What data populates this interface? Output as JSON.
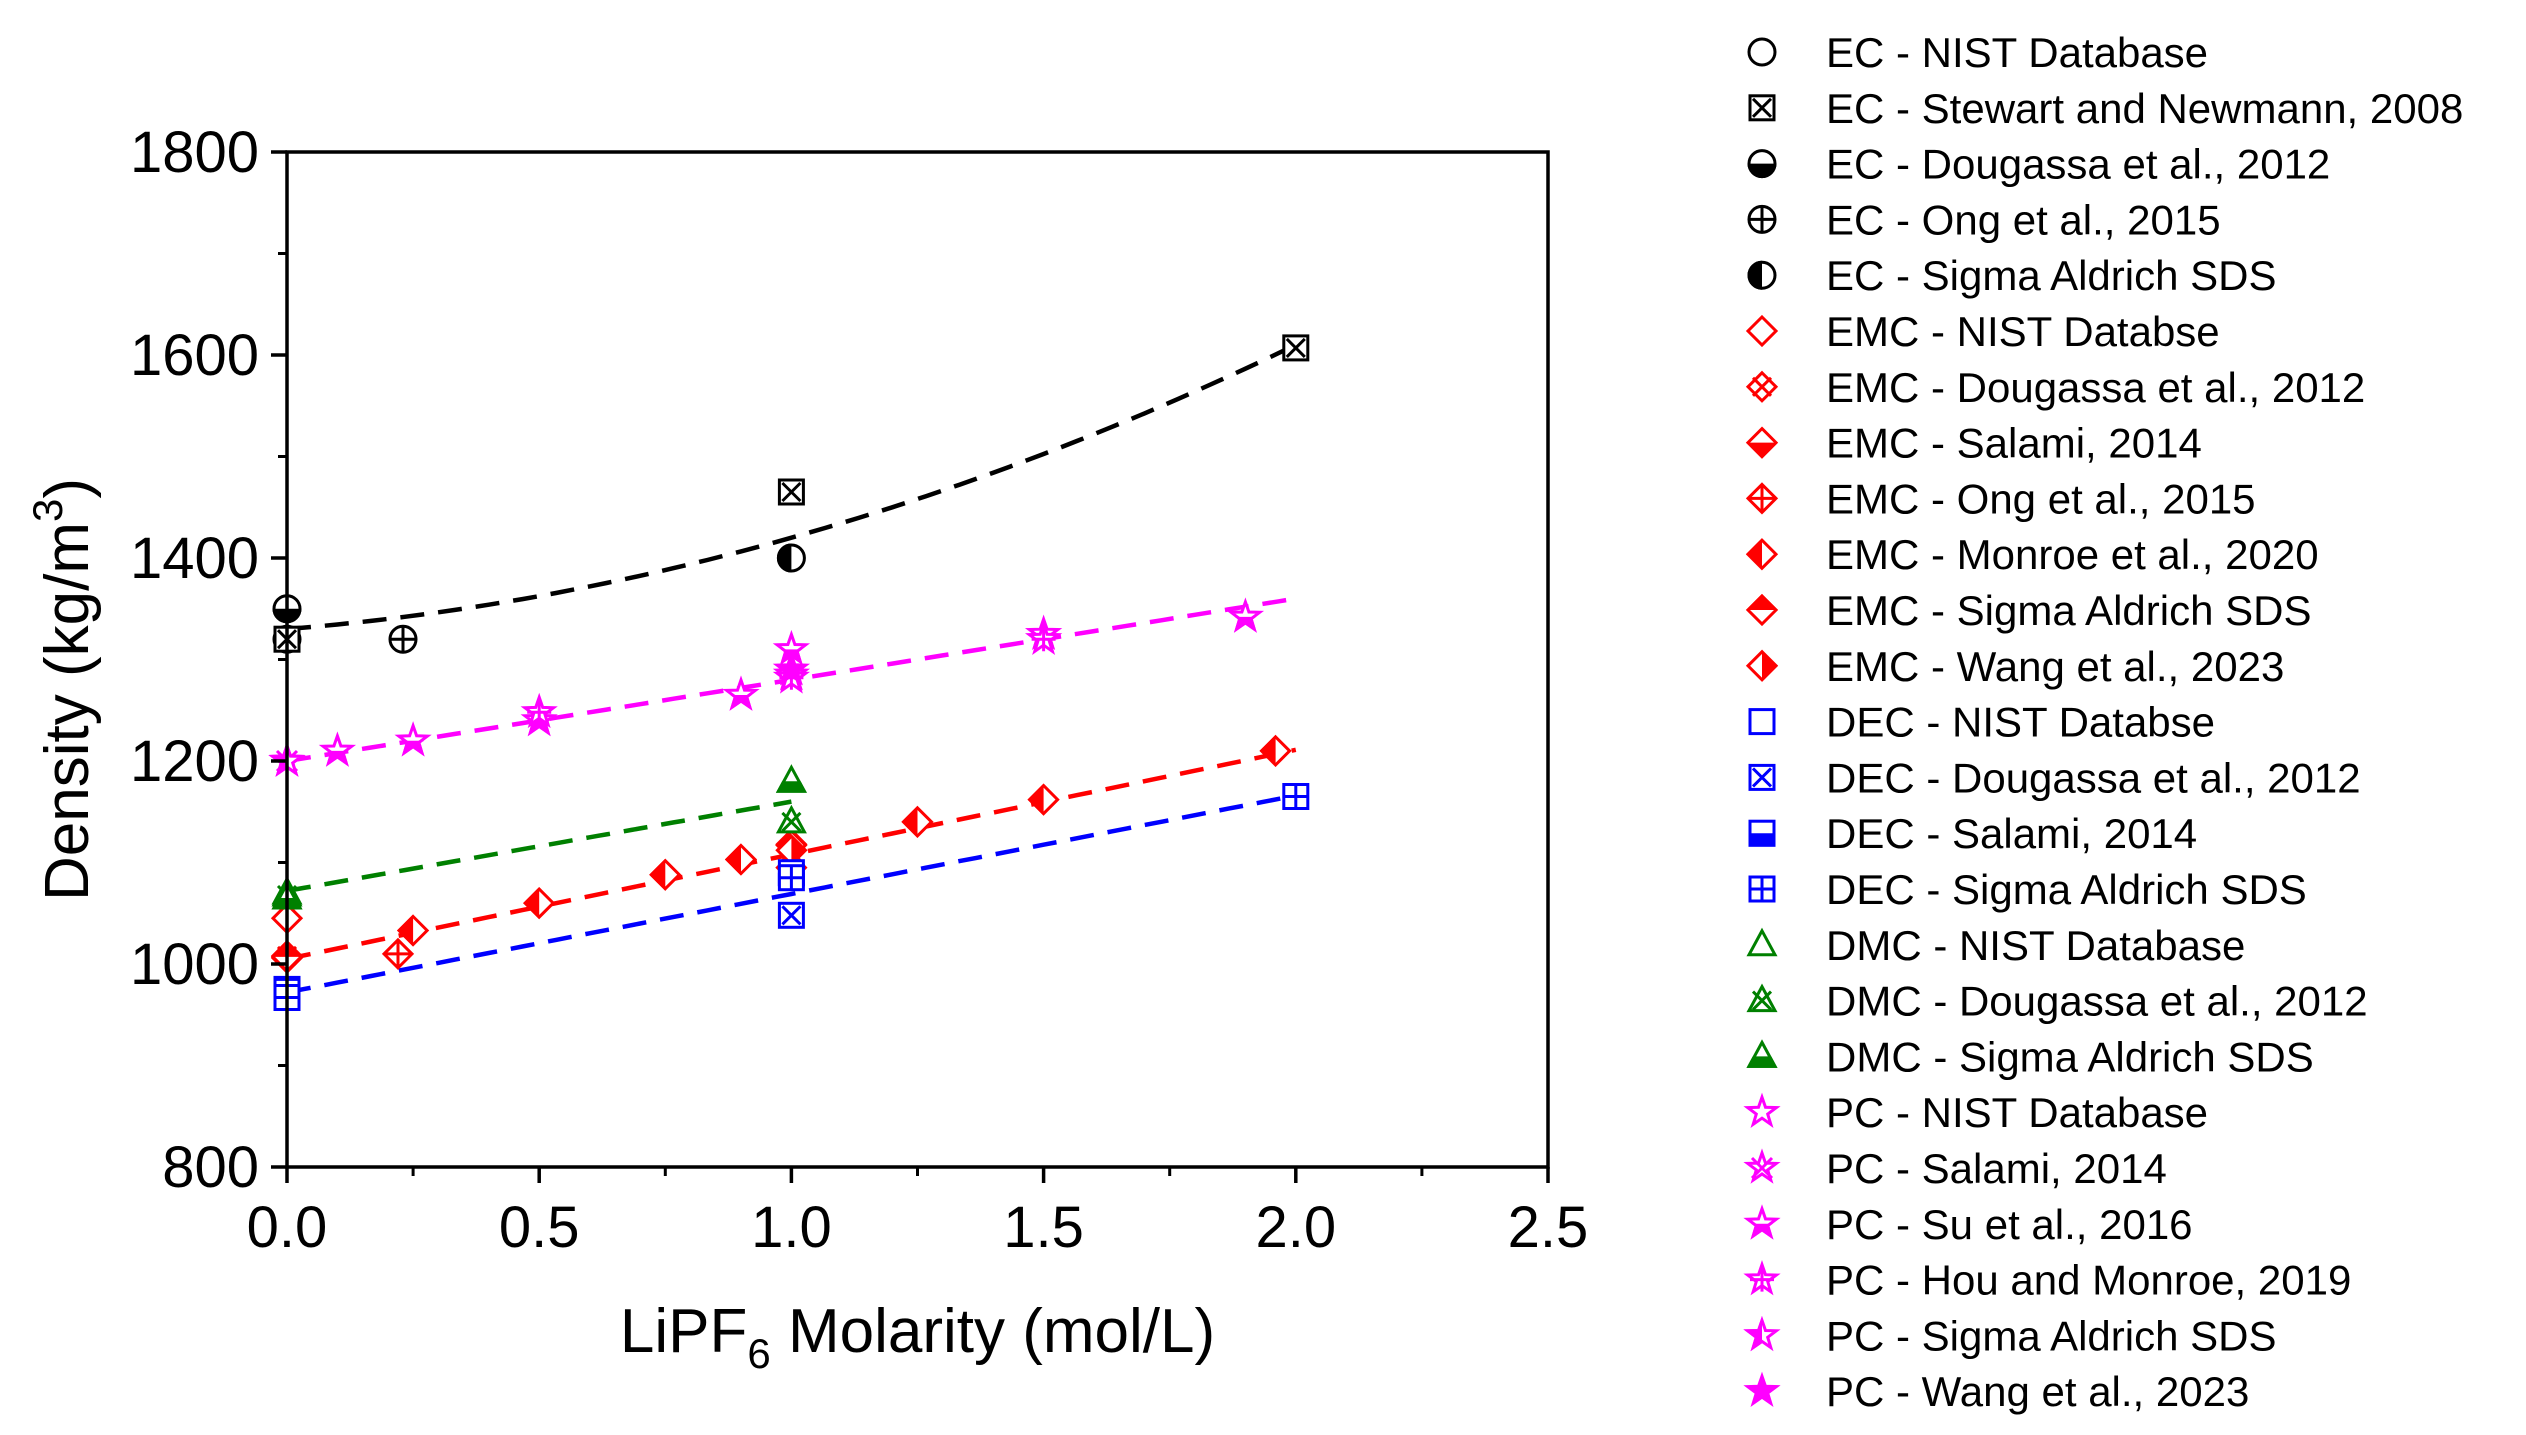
{
  "chart_data": {
    "type": "scatter",
    "title": "",
    "xlabel": {
      "pre": "LiPF",
      "sub": "6",
      "post": " Molarity (mol/L)"
    },
    "ylabel": {
      "pre": "Density (kg/m",
      "sup": "3",
      "post": ")"
    },
    "xlim": [
      0,
      2.5
    ],
    "ylim": [
      800,
      1800
    ],
    "xticks": [
      "0.0",
      "0.5",
      "1.0",
      "1.5",
      "2.0",
      "2.5"
    ],
    "xtick_values": [
      0,
      0.5,
      1.0,
      1.5,
      2.0,
      2.5
    ],
    "yticks": [
      "800",
      "1000",
      "1200",
      "1400",
      "1600",
      "1800"
    ],
    "ytick_values": [
      800,
      1000,
      1200,
      1400,
      1600,
      1800
    ],
    "grid": false,
    "legend_position": "right, outside plot",
    "colors": {
      "EC": "#000000",
      "EMC": "#ff0000",
      "DEC": "#0000ff",
      "DMC": "#008000",
      "PC": "#ff00ff"
    },
    "fits": [
      {
        "name": "EC fit",
        "color": "#000000",
        "coef": [
          1330,
          40,
          50
        ],
        "x_range": [
          0,
          2.0
        ]
      },
      {
        "name": "PC fit",
        "color": "#ff00ff",
        "coef": [
          1200,
          80
        ],
        "x_range": [
          0,
          2.0
        ]
      },
      {
        "name": "DMC fit",
        "color": "#008000",
        "coef": [
          1072,
          88
        ],
        "x_range": [
          0,
          1.0
        ]
      },
      {
        "name": "EMC fit",
        "color": "#ff0000",
        "coef": [
          1005,
          103
        ],
        "x_range": [
          0,
          2.0
        ]
      },
      {
        "name": "DEC fit",
        "color": "#0000ff",
        "coef": [
          972,
          97
        ],
        "x_range": [
          0,
          2.0
        ]
      }
    ],
    "series": [
      {
        "name": "EC - NIST Database",
        "color": "#000000",
        "marker": "circle-open",
        "points": [
          [
            0,
            1320
          ]
        ]
      },
      {
        "name": "EC - Stewart and Newmann, 2008",
        "color": "#000000",
        "marker": "square-x",
        "points": [
          [
            0,
            1320
          ],
          [
            1.0,
            1465
          ],
          [
            2.0,
            1607
          ]
        ]
      },
      {
        "name": "EC - Dougassa et al., 2012",
        "color": "#000000",
        "marker": "circle-bottom-half",
        "points": [
          [
            0,
            1350
          ]
        ]
      },
      {
        "name": "EC - Ong et al., 2015",
        "color": "#000000",
        "marker": "circle-plus",
        "points": [
          [
            0.23,
            1320
          ]
        ]
      },
      {
        "name": "EC - Sigma Aldrich SDS",
        "color": "#000000",
        "marker": "circle-left-half",
        "points": [
          [
            1.0,
            1400
          ]
        ]
      },
      {
        "name": "EMC - NIST Databse",
        "color": "#ff0000",
        "marker": "diamond-open",
        "points": [
          [
            0,
            1045
          ]
        ]
      },
      {
        "name": "EMC - Dougassa et al., 2012",
        "color": "#ff0000",
        "marker": "diamond-x",
        "points": [
          [
            0,
            1008
          ],
          [
            1.0,
            1095
          ]
        ]
      },
      {
        "name": "EMC - Salami, 2014",
        "color": "#ff0000",
        "marker": "diamond-bottom-half",
        "points": [
          [
            0,
            1006
          ],
          [
            1.0,
            1118
          ]
        ]
      },
      {
        "name": "EMC - Ong et al., 2015",
        "color": "#ff0000",
        "marker": "diamond-plus",
        "points": [
          [
            0.22,
            1010
          ]
        ]
      },
      {
        "name": "EMC - Monroe et al., 2020",
        "color": "#ff0000",
        "marker": "diamond-left-half",
        "points": [
          [
            0.25,
            1033
          ],
          [
            0.5,
            1060
          ],
          [
            0.75,
            1088
          ],
          [
            0.9,
            1103
          ],
          [
            1.0,
            1117
          ],
          [
            1.25,
            1140
          ],
          [
            1.5,
            1162
          ],
          [
            1.96,
            1210
          ]
        ]
      },
      {
        "name": "EMC - Sigma Aldrich SDS",
        "color": "#ff0000",
        "marker": "diamond-top-half",
        "points": [
          [
            0,
            1007
          ]
        ]
      },
      {
        "name": "EMC - Wang et al., 2023",
        "color": "#ff0000",
        "marker": "diamond-right-half",
        "points": [
          [
            1.0,
            1112
          ]
        ]
      },
      {
        "name": "DEC - NIST Databse",
        "color": "#0000ff",
        "marker": "square-open",
        "points": [
          [
            0,
            975
          ]
        ]
      },
      {
        "name": "DEC - Dougassa et al., 2012",
        "color": "#0000ff",
        "marker": "square-x",
        "points": [
          [
            0,
            970
          ],
          [
            1.0,
            1048
          ]
        ]
      },
      {
        "name": "DEC - Salami, 2014",
        "color": "#0000ff",
        "marker": "square-bottom-half",
        "points": [
          [
            0,
            973
          ],
          [
            1.0,
            1090
          ]
        ]
      },
      {
        "name": "DEC - Sigma Aldrich SDS",
        "color": "#0000ff",
        "marker": "square-plus",
        "points": [
          [
            0,
            967
          ],
          [
            1.0,
            1085
          ],
          [
            2.0,
            1165
          ]
        ]
      },
      {
        "name": "DMC - NIST Database",
        "color": "#008000",
        "marker": "triangle-open",
        "points": [
          [
            0,
            1070
          ]
        ]
      },
      {
        "name": "DMC - Dougassa et al., 2012",
        "color": "#008000",
        "marker": "triangle-x",
        "points": [
          [
            0,
            1068
          ],
          [
            1.0,
            1140
          ]
        ]
      },
      {
        "name": "DMC - Sigma Aldrich SDS",
        "color": "#008000",
        "marker": "triangle-bottom-half",
        "points": [
          [
            0,
            1065
          ],
          [
            1.0,
            1180
          ]
        ]
      },
      {
        "name": "PC - NIST Database",
        "color": "#ff00ff",
        "marker": "star-open",
        "points": [
          [
            0,
            1200
          ]
        ]
      },
      {
        "name": "PC - Salami, 2014",
        "color": "#ff00ff",
        "marker": "star-x",
        "points": [
          [
            0,
            1200
          ],
          [
            1.0,
            1285
          ]
        ]
      },
      {
        "name": "PC - Su et al., 2016",
        "color": "#ff00ff",
        "marker": "star-bottom-half",
        "points": [
          [
            0.1,
            1210
          ],
          [
            0.25,
            1220
          ],
          [
            0.5,
            1240
          ],
          [
            0.9,
            1265
          ],
          [
            1.0,
            1310
          ],
          [
            1.5,
            1325
          ],
          [
            1.9,
            1342
          ]
        ]
      },
      {
        "name": "PC - Hou and Monroe, 2019",
        "color": "#ff00ff",
        "marker": "star-plus",
        "points": [
          [
            0.5,
            1248
          ],
          [
            1.0,
            1282
          ],
          [
            1.5,
            1320
          ]
        ]
      },
      {
        "name": "PC - Sigma Aldrich SDS",
        "color": "#ff00ff",
        "marker": "star-left-half",
        "points": [
          [
            0,
            1200
          ]
        ]
      },
      {
        "name": "PC - Wang et al., 2023",
        "color": "#ff00ff",
        "marker": "star-filled",
        "points": [
          [
            1.0,
            1290
          ]
        ]
      }
    ]
  }
}
